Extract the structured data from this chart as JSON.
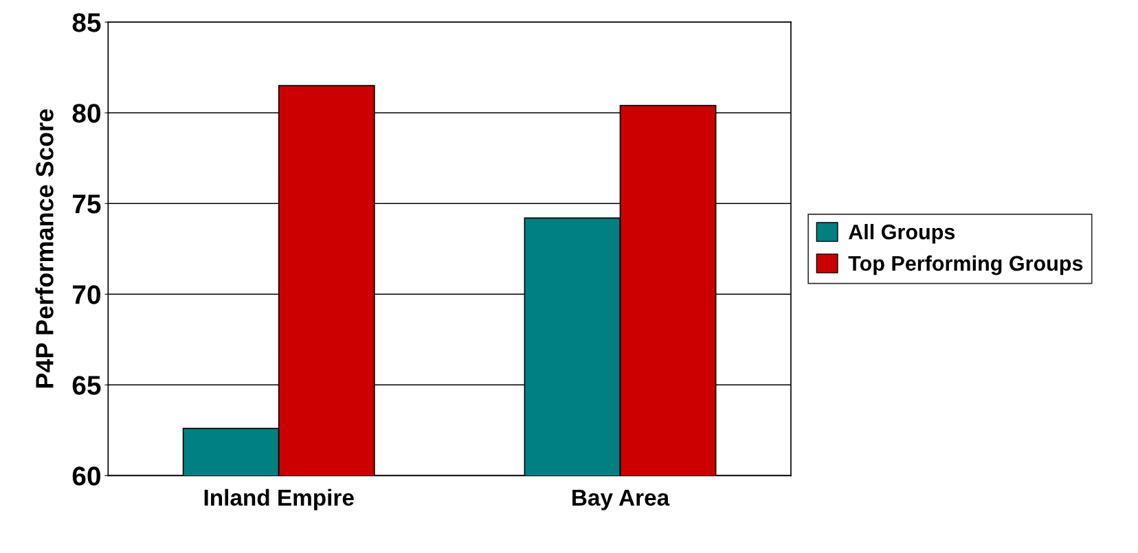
{
  "chart_data": {
    "type": "bar",
    "ylabel": "P4P Performance Score",
    "categories": [
      "Inland Empire",
      "Bay Area"
    ],
    "series": [
      {
        "name": "All Groups",
        "color": "#008080",
        "values": [
          62.6,
          74.2
        ]
      },
      {
        "name": "Top Performing Groups",
        "color": "#cc0000",
        "values": [
          81.5,
          80.4
        ]
      }
    ],
    "ylim": [
      60,
      85
    ],
    "yticks": [
      60,
      65,
      70,
      75,
      80,
      85
    ],
    "grid": "y",
    "legend": "right"
  }
}
